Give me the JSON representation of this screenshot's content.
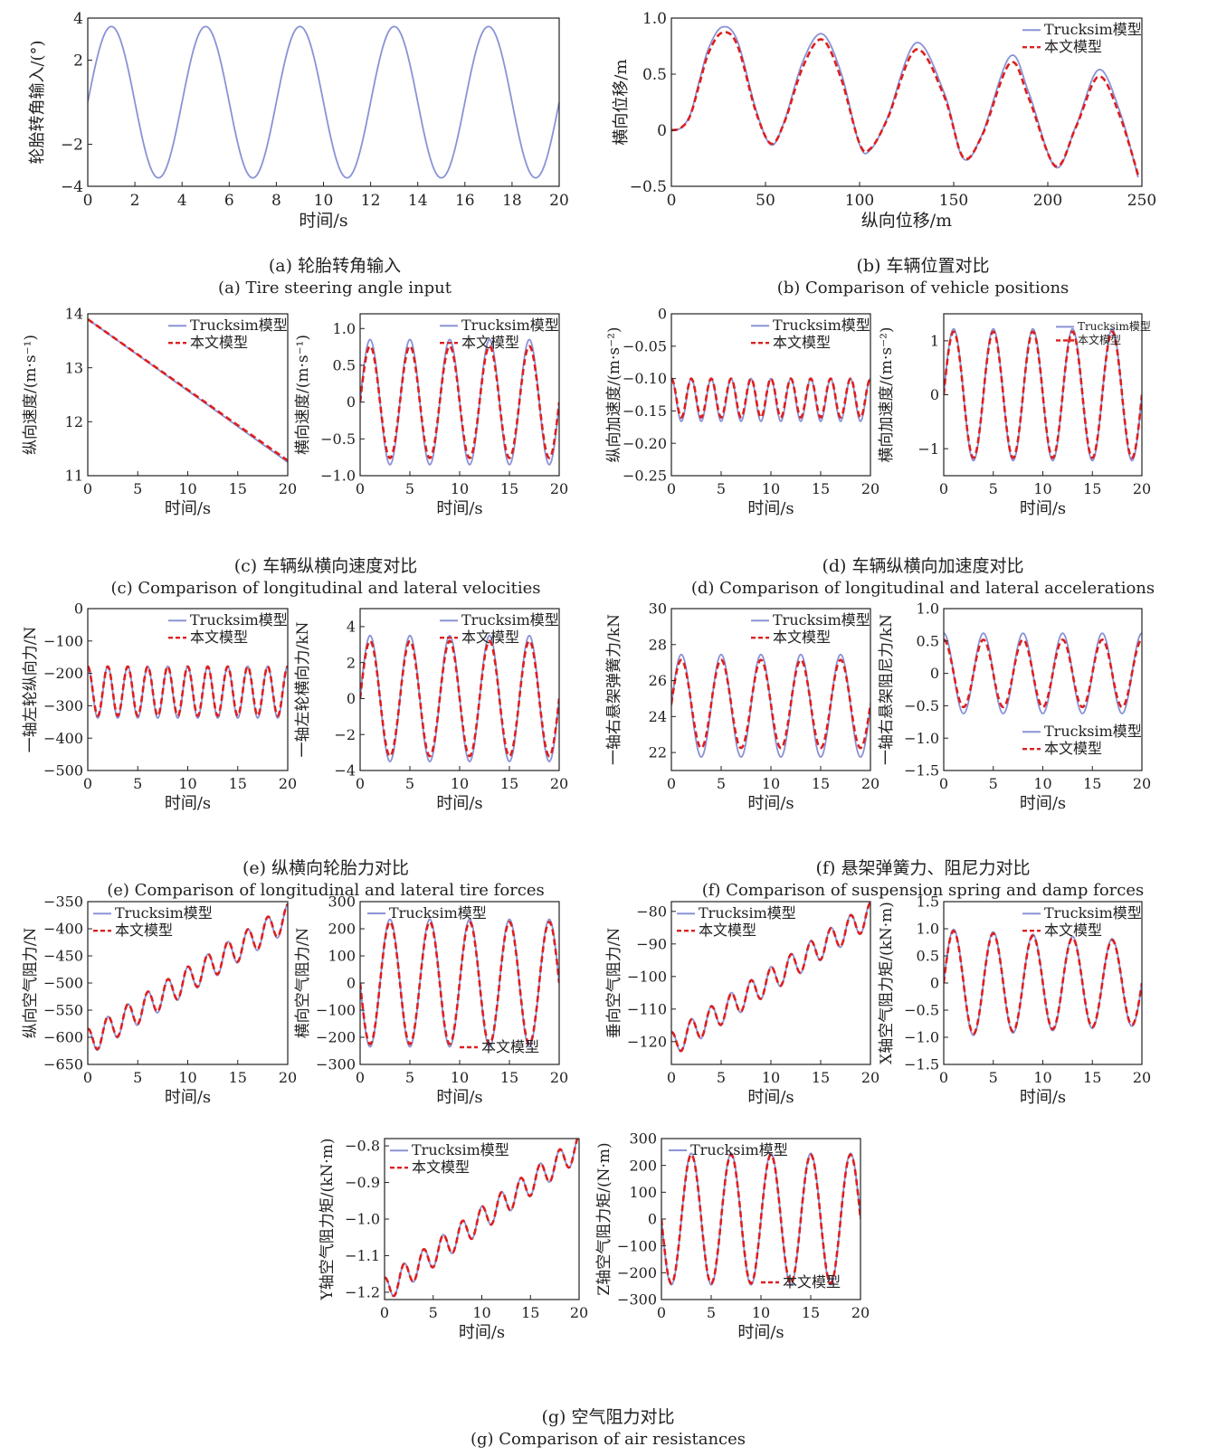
{
  "colors": {
    "trucksim": "#8a93d6",
    "model": "#dd1f1f",
    "axis": "#222222"
  },
  "legend_labels": {
    "trucksim": "Trucksim模型",
    "model": "本文模型"
  },
  "captions": [
    {
      "id": "a",
      "zh": "(a) 轮胎转角输入",
      "en": "(a) Tire steering angle input"
    },
    {
      "id": "b",
      "zh": "(b) 车辆位置对比",
      "en": "(b) Comparison of vehicle positions"
    },
    {
      "id": "c",
      "zh": "(c) 车辆纵横向速度对比",
      "en": "(c) Comparison of longitudinal and lateral velocities"
    },
    {
      "id": "d",
      "zh": "(d) 车辆纵横向加速度对比",
      "en": "(d) Comparison of longitudinal and lateral accelerations"
    },
    {
      "id": "e",
      "zh": "(e) 纵横向轮胎力对比",
      "en": "(e) Comparison of longitudinal and lateral tire forces"
    },
    {
      "id": "f",
      "zh": "(f) 悬架弹簧力、阻尼力对比",
      "en": "(f) Comparison of suspension spring and damp forces"
    },
    {
      "id": "g",
      "zh": "(g) 空气阻力对比",
      "en": "(g) Comparison of air resistances"
    }
  ],
  "chart_data": [
    {
      "id": "a",
      "type": "line",
      "xlabel": "时间/s",
      "ylabel": "轮胎转角输入/(°)",
      "xlim": [
        0,
        20
      ],
      "ylim": [
        -4,
        4
      ],
      "xticks": [
        0,
        2,
        4,
        6,
        8,
        10,
        12,
        14,
        16,
        18,
        20
      ],
      "yticks": [
        -4,
        -2,
        2,
        4
      ],
      "legend": "none",
      "series": [
        {
          "key": "trucksim",
          "fn": {
            "kind": "sine",
            "amp": 3.6,
            "period": 4,
            "trend": 0
          }
        }
      ]
    },
    {
      "id": "b",
      "type": "line",
      "xlabel": "纵向位移/m",
      "ylabel": "横向位移/m",
      "xlim": [
        0,
        250
      ],
      "ylim": [
        -0.5,
        1.0
      ],
      "xticks": [
        0,
        50,
        100,
        150,
        200,
        250
      ],
      "yticks": [
        -0.5,
        0,
        0.5,
        1.0
      ],
      "legend": "top-right",
      "series": [
        {
          "key": "trucksim",
          "name": "Trucksim模型",
          "x": [
            0,
            5,
            10,
            15,
            20,
            27,
            35,
            45,
            53,
            60,
            70,
            80,
            90,
            100,
            106,
            115,
            130,
            145,
            155,
            165,
            180,
            190,
            204,
            215,
            227,
            238,
            248
          ],
          "y": [
            0,
            0.02,
            0.14,
            0.45,
            0.74,
            0.92,
            0.8,
            0.18,
            -0.13,
            0.08,
            0.62,
            0.86,
            0.52,
            -0.13,
            -0.17,
            0.12,
            0.78,
            0.33,
            -0.25,
            -0.04,
            0.66,
            0.33,
            -0.33,
            0.04,
            0.54,
            0.18,
            -0.42
          ]
        },
        {
          "key": "model",
          "name": "本文模型",
          "x": [
            0,
            5,
            10,
            15,
            20,
            27,
            35,
            45,
            53,
            60,
            70,
            80,
            90,
            100,
            106,
            115,
            130,
            145,
            155,
            165,
            180,
            190,
            204,
            215,
            227,
            238,
            248
          ],
          "y": [
            0,
            0.02,
            0.13,
            0.42,
            0.7,
            0.87,
            0.76,
            0.16,
            -0.12,
            0.07,
            0.57,
            0.81,
            0.47,
            -0.12,
            -0.16,
            0.11,
            0.72,
            0.3,
            -0.24,
            -0.05,
            0.6,
            0.28,
            -0.32,
            0.03,
            0.48,
            0.14,
            -0.4
          ]
        }
      ]
    },
    {
      "id": "c1",
      "type": "line",
      "xlabel": "时间/s",
      "ylabel": "纵向速度/(m·s⁻¹)",
      "xlim": [
        0,
        20
      ],
      "ylim": [
        11,
        14
      ],
      "xticks": [
        0,
        5,
        10,
        15,
        20
      ],
      "yticks": [
        11,
        12,
        13,
        14
      ],
      "legend": "top-right",
      "series": [
        {
          "key": "trucksim",
          "name": "Trucksim模型",
          "x": [
            0,
            20
          ],
          "y": [
            13.9,
            11.25
          ]
        },
        {
          "key": "model",
          "name": "本文模型",
          "x": [
            0,
            20
          ],
          "y": [
            13.9,
            11.28
          ]
        }
      ]
    },
    {
      "id": "c2",
      "type": "line",
      "xlabel": "时间/s",
      "ylabel": "横向速度/(m·s⁻¹)",
      "xlim": [
        0,
        20
      ],
      "ylim": [
        -1.0,
        1.2
      ],
      "xticks": [
        0,
        5,
        10,
        15,
        20
      ],
      "yticks": [
        -1.0,
        -0.5,
        0,
        0.5,
        1.0
      ],
      "legend": "top-right",
      "series": [
        {
          "key": "trucksim",
          "name": "Trucksim模型",
          "fn": {
            "kind": "sine",
            "amp": 0.85,
            "period": 4,
            "trend": 0
          }
        },
        {
          "key": "model",
          "name": "本文模型",
          "fn": {
            "kind": "sine",
            "amp": 0.76,
            "period": 4,
            "trend": 0
          }
        }
      ]
    },
    {
      "id": "d1",
      "type": "line",
      "xlabel": "时间/s",
      "ylabel": "纵向加速度/(m·s⁻²)",
      "xlim": [
        0,
        20
      ],
      "ylim": [
        -0.25,
        0
      ],
      "xticks": [
        0,
        5,
        10,
        15,
        20
      ],
      "yticks": [
        -0.25,
        -0.2,
        -0.15,
        -0.1,
        -0.05,
        0
      ],
      "legend": "top-right",
      "series": [
        {
          "key": "trucksim",
          "name": "Trucksim模型",
          "fn": {
            "kind": "cos2",
            "amp": 0.033,
            "period": 4,
            "trend": 0,
            "offset": -0.133
          }
        },
        {
          "key": "model",
          "name": "本文模型",
          "fn": {
            "kind": "cos2",
            "amp": 0.03,
            "period": 4,
            "trend": 0,
            "offset": -0.13
          }
        }
      ]
    },
    {
      "id": "d2",
      "type": "line",
      "xlabel": "时间/s",
      "ylabel": "横向加速度/(m·s⁻²)",
      "xlim": [
        0,
        20
      ],
      "ylim": [
        -1.5,
        1.5
      ],
      "xticks": [
        0,
        5,
        10,
        15,
        20
      ],
      "yticks": [
        -1,
        0,
        1
      ],
      "legend": "top-right",
      "series": [
        {
          "key": "trucksim",
          "name": "Trucksim模型",
          "fn": {
            "kind": "sine",
            "amp": 1.22,
            "period": 4,
            "trend": 0
          }
        },
        {
          "key": "model",
          "name": "本文模型",
          "fn": {
            "kind": "sine",
            "amp": 1.17,
            "period": 4,
            "trend": 0
          }
        }
      ]
    },
    {
      "id": "e1",
      "type": "line",
      "xlabel": "时间/s",
      "ylabel": "一轴左轮纵向力/N",
      "xlim": [
        0,
        20
      ],
      "ylim": [
        -500,
        0
      ],
      "xticks": [
        0,
        5,
        10,
        15,
        20
      ],
      "yticks": [
        -500,
        -400,
        -300,
        -200,
        -100,
        0
      ],
      "legend": "top-right",
      "series": [
        {
          "key": "trucksim",
          "name": "Trucksim模型",
          "fn": {
            "kind": "cos2",
            "amp": 80,
            "period": 4,
            "trend": 0,
            "offset": -258
          }
        },
        {
          "key": "model",
          "name": "本文模型",
          "fn": {
            "kind": "cos2",
            "amp": 76,
            "period": 4,
            "trend": 0,
            "offset": -255
          }
        }
      ]
    },
    {
      "id": "e2",
      "type": "line",
      "xlabel": "时间/s",
      "ylabel": "一轴左轮横向力/kN",
      "xlim": [
        0,
        20
      ],
      "ylim": [
        -4,
        5
      ],
      "xticks": [
        0,
        5,
        10,
        15,
        20
      ],
      "yticks": [
        -4,
        -2,
        0,
        2,
        4
      ],
      "legend": "top-right",
      "series": [
        {
          "key": "trucksim",
          "name": "Trucksim模型",
          "fn": {
            "kind": "sine",
            "amp": 3.5,
            "period": 4,
            "trend": 0
          }
        },
        {
          "key": "model",
          "name": "本文模型",
          "fn": {
            "kind": "sine",
            "amp": 3.2,
            "period": 4,
            "trend": 0
          }
        }
      ]
    },
    {
      "id": "f1",
      "type": "line",
      "xlabel": "时间/s",
      "ylabel": "一轴右悬架弹簧力/kN",
      "xlim": [
        0,
        20
      ],
      "ylim": [
        21,
        30
      ],
      "xticks": [
        0,
        5,
        10,
        15,
        20
      ],
      "yticks": [
        22,
        24,
        26,
        28,
        30
      ],
      "legend": "top-right",
      "series": [
        {
          "key": "trucksim",
          "name": "Trucksim模型",
          "fn": {
            "kind": "sine",
            "amp": 2.85,
            "period": 4,
            "trend": 0,
            "offset": 24.6
          }
        },
        {
          "key": "model",
          "name": "本文模型",
          "fn": {
            "kind": "sine",
            "amp": 2.45,
            "period": 4,
            "trend": 0,
            "offset": 24.7
          }
        }
      ]
    },
    {
      "id": "f2",
      "type": "line",
      "xlabel": "时间/s",
      "ylabel": "一轴右悬架阻尼力/kN",
      "xlim": [
        0,
        20
      ],
      "ylim": [
        -1.5,
        1.0
      ],
      "xticks": [
        0,
        5,
        10,
        15,
        20
      ],
      "yticks": [
        -1.5,
        -1.0,
        -0.5,
        0,
        0.5,
        1.0
      ],
      "legend": "bottom-right",
      "series": [
        {
          "key": "trucksim",
          "name": "Trucksim模型",
          "fn": {
            "kind": "cos",
            "amp": 0.62,
            "period": 4,
            "trend": 0
          }
        },
        {
          "key": "model",
          "name": "本文模型",
          "fn": {
            "kind": "cos",
            "amp": 0.52,
            "period": 4,
            "trend": 0
          }
        }
      ]
    },
    {
      "id": "g1",
      "type": "line",
      "xlabel": "时间/s",
      "ylabel": "纵向空气阻力/N",
      "xlim": [
        0,
        20
      ],
      "ylim": [
        -650,
        -350
      ],
      "xticks": [
        0,
        5,
        10,
        15,
        20
      ],
      "yticks": [
        -650,
        -600,
        -550,
        -500,
        -450,
        -400,
        -350
      ],
      "legend": "top-left",
      "series": [
        {
          "key": "trucksim",
          "name": "Trucksim模型",
          "fn": {
            "kind": "cos2",
            "amp": 25,
            "period": 4,
            "trend": 11.5,
            "offset": -610
          }
        },
        {
          "key": "model",
          "name": "本文模型",
          "fn": {
            "kind": "cos2",
            "amp": 24,
            "period": 4,
            "trend": 11.5,
            "offset": -609
          }
        }
      ]
    },
    {
      "id": "g2",
      "type": "line",
      "xlabel": "时间/s",
      "ylabel": "横向空气阻力/N",
      "xlim": [
        0,
        20
      ],
      "ylim": [
        -300,
        300
      ],
      "xticks": [
        0,
        5,
        10,
        15,
        20
      ],
      "yticks": [
        -300,
        -200,
        -100,
        0,
        100,
        200,
        300
      ],
      "legend": "split",
      "series": [
        {
          "key": "trucksim",
          "name": "Trucksim模型",
          "fn": {
            "kind": "sine",
            "amp": 235,
            "period": 4,
            "trend": 0,
            "phase": 2
          }
        },
        {
          "key": "model",
          "name": "本文模型",
          "fn": {
            "kind": "sine",
            "amp": 225,
            "period": 4,
            "trend": 0,
            "phase": 2
          }
        }
      ]
    },
    {
      "id": "g3",
      "type": "line",
      "xlabel": "时间/s",
      "ylabel": "垂向空气阻力/N",
      "xlim": [
        0,
        20
      ],
      "ylim": [
        -127,
        -77
      ],
      "xticks": [
        0,
        5,
        10,
        15,
        20
      ],
      "yticks": [
        -120,
        -110,
        -100,
        -90,
        -80
      ],
      "legend": "top-left",
      "series": [
        {
          "key": "trucksim",
          "name": "Trucksim模型",
          "fn": {
            "kind": "cos2",
            "amp": 4,
            "period": 4,
            "trend": 2.0,
            "offset": -121
          }
        },
        {
          "key": "model",
          "name": "本文模型",
          "fn": {
            "kind": "cos2",
            "amp": 3.8,
            "period": 4,
            "trend": 2.0,
            "offset": -121
          }
        }
      ]
    },
    {
      "id": "g4",
      "type": "line",
      "xlabel": "时间/s",
      "ylabel": "X轴空气阻力矩/(kN·m)",
      "xlim": [
        0,
        20
      ],
      "ylim": [
        -1.5,
        1.5
      ],
      "xticks": [
        0,
        5,
        10,
        15,
        20
      ],
      "yticks": [
        -1.5,
        -1.0,
        -0.5,
        0,
        0.5,
        1.0,
        1.5
      ],
      "legend": "top-right",
      "series": [
        {
          "key": "trucksim",
          "name": "Trucksim模型",
          "fn": {
            "kind": "sine",
            "amp": 1.0,
            "period": 4,
            "trend": 0,
            "decay": 0.012
          }
        },
        {
          "key": "model",
          "name": "本文模型",
          "fn": {
            "kind": "sine",
            "amp": 0.97,
            "period": 4,
            "trend": 0,
            "decay": 0.012
          }
        }
      ]
    },
    {
      "id": "g5",
      "type": "line",
      "xlabel": "时间/s",
      "ylabel": "Y轴空气阻力矩/(kN·m)",
      "xlim": [
        0,
        20
      ],
      "ylim": [
        -1.22,
        -0.78
      ],
      "xticks": [
        0,
        5,
        10,
        15,
        20
      ],
      "yticks": [
        -1.2,
        -1.1,
        -1.0,
        -0.9,
        -0.8
      ],
      "legend": "top-left",
      "series": [
        {
          "key": "trucksim",
          "name": "Trucksim模型",
          "fn": {
            "kind": "cos2",
            "amp": 0.035,
            "period": 4,
            "trend": 0.0195,
            "offset": -1.195
          }
        },
        {
          "key": "model",
          "name": "本文模型",
          "fn": {
            "kind": "cos2",
            "amp": 0.034,
            "period": 4,
            "trend": 0.0195,
            "offset": -1.195
          }
        }
      ]
    },
    {
      "id": "g6",
      "type": "line",
      "xlabel": "时间/s",
      "ylabel": "Z轴空气阻力矩/(N·m)",
      "xlim": [
        0,
        20
      ],
      "ylim": [
        -300,
        300
      ],
      "xticks": [
        0,
        5,
        10,
        15,
        20
      ],
      "yticks": [
        -300,
        -200,
        -100,
        0,
        100,
        200,
        300
      ],
      "legend": "split",
      "series": [
        {
          "key": "trucksim",
          "name": "Trucksim模型",
          "fn": {
            "kind": "sine",
            "amp": 245,
            "period": 4,
            "trend": 0,
            "phase": 2
          }
        },
        {
          "key": "model",
          "name": "本文模型",
          "fn": {
            "kind": "sine",
            "amp": 240,
            "period": 4,
            "trend": 0,
            "phase": 2
          }
        }
      ]
    }
  ]
}
